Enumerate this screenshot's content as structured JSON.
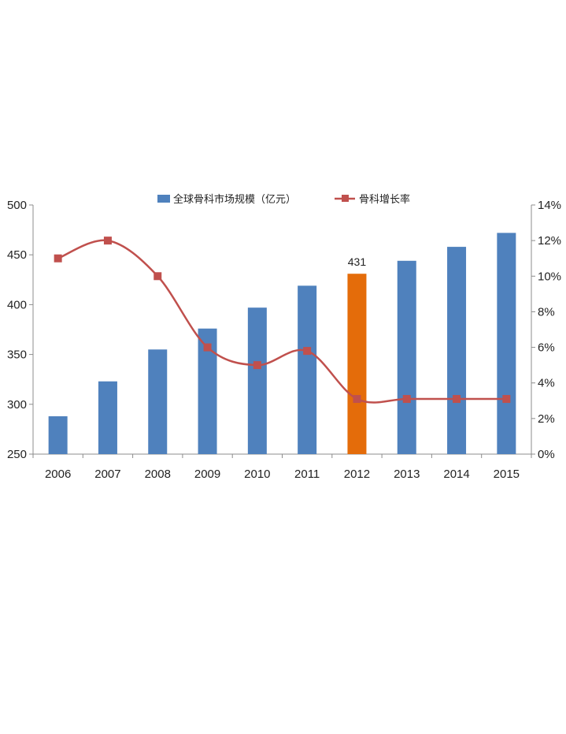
{
  "chart_data": {
    "type": "bar",
    "title": "",
    "categories": [
      "2006",
      "2007",
      "2008",
      "2009",
      "2010",
      "2011",
      "2012",
      "2013",
      "2014",
      "2015"
    ],
    "series": [
      {
        "name": "全球骨科市场规模（亿元）",
        "type": "bar",
        "axis": "left",
        "color": "#4f81bd",
        "highlight_color": "#e46c0a",
        "highlight_index": 6,
        "values": [
          288,
          323,
          355,
          376,
          397,
          419,
          431,
          444,
          458,
          472
        ]
      },
      {
        "name": "骨科增长率",
        "type": "line",
        "axis": "right",
        "color": "#c0504d",
        "smooth": true,
        "values": [
          11,
          12,
          10,
          6,
          5,
          5.8,
          3.1,
          3.1,
          3.1,
          3.1
        ]
      }
    ],
    "y_left": {
      "min": 250,
      "max": 500,
      "ticks": [
        "250",
        "300",
        "350",
        "400",
        "450",
        "500"
      ]
    },
    "y_right": {
      "min": 0,
      "max": 14,
      "ticks": [
        "0%",
        "2%",
        "4%",
        "6%",
        "8%",
        "10%",
        "12%",
        "14%"
      ]
    },
    "data_labels": [
      {
        "index": 6,
        "text": "431"
      }
    ],
    "legend": {
      "placement": "top-center"
    },
    "grid": false
  }
}
